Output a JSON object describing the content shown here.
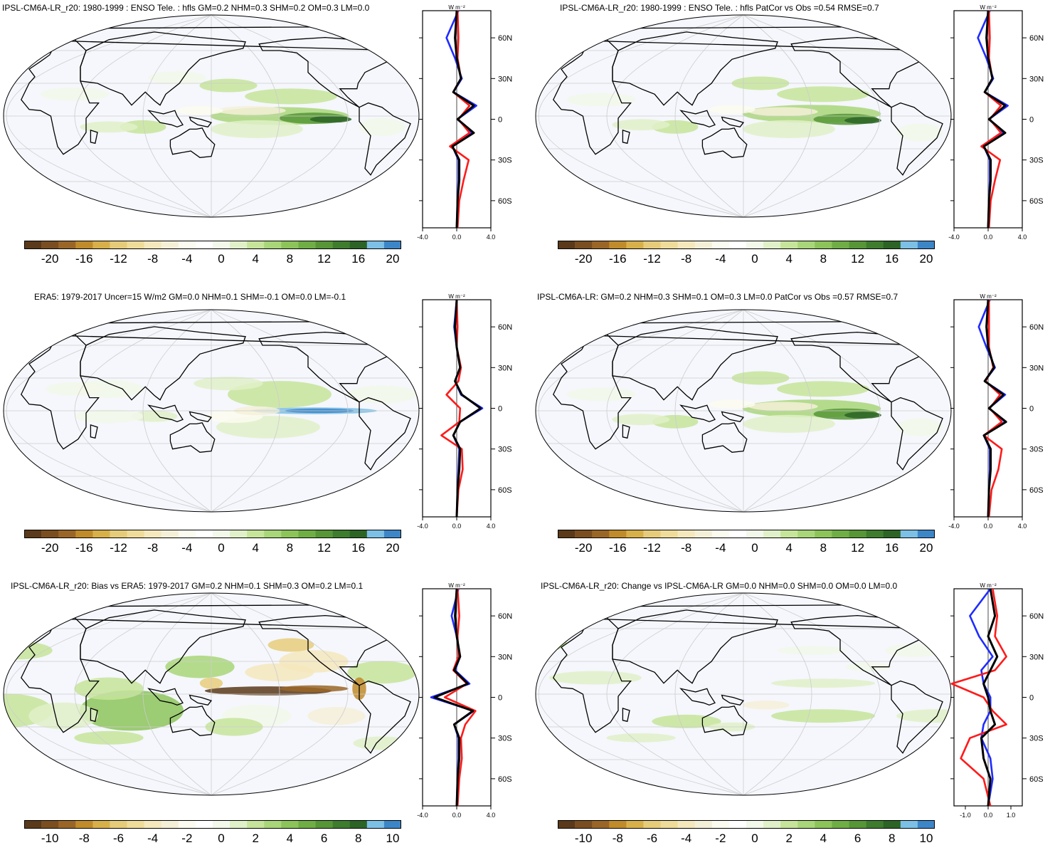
{
  "colors": {
    "ocean": "#f5f7fc",
    "land_outline": "#000000",
    "grid": "#cccccc",
    "series_blue": "#1f2bff",
    "series_red": "#ff1a1a",
    "series_black": "#000000",
    "colorbar": [
      "#5a3a1a",
      "#7a4e20",
      "#9a6628",
      "#c08b2a",
      "#d8b04a",
      "#e6cc7a",
      "#efdc9a",
      "#f5e8bc",
      "#f4f0d8",
      "#fbfbf0",
      "#ffffff",
      "#f2f8ea",
      "#e0f0c8",
      "#c6e49a",
      "#a8d678",
      "#8cc45a",
      "#6fae44",
      "#569636",
      "#3e7c2e",
      "#2c6426",
      "#7cc0e6",
      "#3c86c8"
    ]
  },
  "profile_unit": "W m⁻²",
  "lat_ticks": [
    "60N",
    "30N",
    "0",
    "30S",
    "60S"
  ],
  "panels": [
    {
      "id": "p1",
      "title": "IPSL-CM6A-LR_r20: 1980-1999 : ENSO Tele. : hfls GM=0.2 NHM=0.3 SHM=0.2 OM=0.3 LM=0.0",
      "cb_labels": [
        "-20",
        "-16",
        "-12",
        "-8",
        "-4",
        "0",
        "4",
        "8",
        "12",
        "16",
        "20"
      ],
      "x_ticks": [
        "-4.0",
        "0.0",
        "4.0"
      ]
    },
    {
      "id": "p2",
      "title": "IPSL-CM6A-LR_r20: 1980-1999 : ENSO Tele. : hfls PatCor vs Obs =0.54 RMSE=0.7",
      "cb_labels": [
        "-20",
        "-16",
        "-12",
        "-8",
        "-4",
        "0",
        "4",
        "8",
        "12",
        "16",
        "20"
      ],
      "x_ticks": [
        "-4.0",
        "0.0",
        "4.0"
      ]
    },
    {
      "id": "p3",
      "title": "ERA5: 1979-2017 Uncer=15 W/m2 GM=0.0 NHM=0.1 SHM=-0.1 OM=0.0 LM=-0.1",
      "cb_labels": [
        "-20",
        "-16",
        "-12",
        "-8",
        "-4",
        "0",
        "4",
        "8",
        "12",
        "16",
        "20"
      ],
      "x_ticks": [
        "-4.0",
        "0.0",
        "4.0"
      ]
    },
    {
      "id": "p4",
      "title": "IPSL-CM6A-LR: GM=0.2 NHM=0.3 SHM=0.1 OM=0.3 LM=0.0 PatCor vs Obs =0.57 RMSE=0.7",
      "cb_labels": [
        "-20",
        "-16",
        "-12",
        "-8",
        "-4",
        "0",
        "4",
        "8",
        "12",
        "16",
        "20"
      ],
      "x_ticks": [
        "-4.0",
        "0.0",
        "4.0"
      ]
    },
    {
      "id": "p5",
      "title": "IPSL-CM6A-LR_r20: Bias vs ERA5: 1979-2017 GM=0.2 NHM=0.1 SHM=0.3 OM=0.2 LM=0.1",
      "cb_labels": [
        "-10",
        "-8",
        "-6",
        "-4",
        "-2",
        "0",
        "2",
        "4",
        "6",
        "8",
        "10"
      ],
      "x_ticks": [
        "-4.0",
        "0.0",
        "4.0"
      ]
    },
    {
      "id": "p6",
      "title": "IPSL-CM6A-LR_r20: Change vs IPSL-CM6A-LR GM=0.0 NHM=0.0 SHM=0.0 OM=0.0 LM=0.0",
      "cb_labels": [
        "-10",
        "-8",
        "-6",
        "-4",
        "-2",
        "0",
        "2",
        "4",
        "6",
        "8",
        "10"
      ],
      "x_ticks": [
        "-1.0",
        "0.0",
        "1.0"
      ]
    }
  ],
  "chart_data": [
    {
      "type": "line",
      "panel": "p1",
      "xlim": [
        -4,
        4
      ],
      "ylim": [
        -80,
        80
      ],
      "lat": [
        -80,
        -60,
        -45,
        -30,
        -20,
        -10,
        0,
        10,
        20,
        30,
        45,
        60,
        80
      ],
      "series": [
        {
          "color": "blue",
          "values": [
            0,
            0.1,
            0.2,
            0.2,
            -0.5,
            1.8,
            0.1,
            2.3,
            -0.4,
            0.6,
            -0.2,
            -1.2,
            0.2
          ]
        },
        {
          "color": "red",
          "values": [
            0.1,
            0.3,
            0.8,
            1.4,
            -0.8,
            1.5,
            0.2,
            1.5,
            -0.4,
            0.5,
            0.1,
            0.2,
            0.1
          ]
        },
        {
          "color": "black",
          "values": [
            0,
            0.1,
            0.3,
            0.3,
            -0.5,
            2.0,
            0.1,
            2.0,
            -0.4,
            0.5,
            0,
            -0.2,
            0
          ]
        }
      ]
    },
    {
      "type": "line",
      "panel": "p2",
      "xlim": [
        -4,
        4
      ],
      "ylim": [
        -80,
        80
      ],
      "lat": [
        -80,
        -60,
        -45,
        -30,
        -20,
        -10,
        0,
        10,
        20,
        30,
        45,
        60,
        80
      ],
      "series": [
        {
          "color": "blue",
          "values": [
            0,
            0.1,
            0.2,
            0.2,
            -0.5,
            1.8,
            0.1,
            2.3,
            -0.4,
            0.6,
            -0.2,
            -1.2,
            0.2
          ]
        },
        {
          "color": "red",
          "values": [
            0.1,
            0.3,
            0.8,
            1.4,
            -0.8,
            1.5,
            0.2,
            1.5,
            -0.4,
            0.5,
            0.1,
            0.2,
            0.1
          ]
        },
        {
          "color": "black",
          "values": [
            0,
            0.1,
            0.3,
            0.3,
            -0.5,
            2.0,
            0.1,
            2.0,
            -0.4,
            0.5,
            0,
            -0.2,
            0
          ]
        }
      ]
    },
    {
      "type": "line",
      "panel": "p3",
      "xlim": [
        -4,
        4
      ],
      "ylim": [
        -80,
        80
      ],
      "lat": [
        -80,
        -60,
        -45,
        -30,
        -20,
        -10,
        0,
        10,
        20,
        30,
        45,
        60,
        80
      ],
      "series": [
        {
          "color": "blue",
          "values": [
            0,
            0.1,
            0.2,
            0.3,
            -0.4,
            0.4,
            3.0,
            0.5,
            -0.2,
            0.4,
            0,
            -0.3,
            0
          ]
        },
        {
          "color": "red",
          "values": [
            0,
            0.2,
            0.7,
            0.6,
            -1.8,
            0.3,
            0.4,
            -1.2,
            0.2,
            0.5,
            0,
            0.1,
            0
          ]
        },
        {
          "color": "black",
          "values": [
            0,
            0.1,
            0.3,
            0.4,
            -0.4,
            0.4,
            2.8,
            0.6,
            -0.2,
            0.4,
            0,
            -0.2,
            0
          ]
        }
      ]
    },
    {
      "type": "line",
      "panel": "p4",
      "xlim": [
        -4,
        4
      ],
      "ylim": [
        -80,
        80
      ],
      "lat": [
        -80,
        -60,
        -45,
        -30,
        -20,
        -10,
        0,
        10,
        20,
        30,
        45,
        60,
        80
      ],
      "series": [
        {
          "color": "blue",
          "values": [
            0,
            0.1,
            0.2,
            0.2,
            -0.5,
            2.0,
            0.1,
            2.0,
            -0.4,
            0.8,
            -0.2,
            -1.1,
            0.2
          ]
        },
        {
          "color": "red",
          "values": [
            0.1,
            0.4,
            1.2,
            1.6,
            -0.5,
            1.6,
            0.2,
            1.4,
            -0.3,
            0.6,
            0.1,
            0.1,
            0.1
          ]
        },
        {
          "color": "black",
          "values": [
            0,
            0.1,
            0.3,
            0.3,
            -0.5,
            2.1,
            0.1,
            1.8,
            -0.4,
            0.7,
            0,
            -0.2,
            0
          ]
        }
      ]
    },
    {
      "type": "line",
      "panel": "p5",
      "xlim": [
        -4,
        4
      ],
      "ylim": [
        -80,
        80
      ],
      "lat": [
        -80,
        -60,
        -45,
        -30,
        -20,
        -10,
        0,
        10,
        20,
        30,
        45,
        60,
        80
      ],
      "series": [
        {
          "color": "blue",
          "values": [
            0,
            0.1,
            0.2,
            0.2,
            -0.3,
            2.0,
            -3.0,
            1.5,
            -0.2,
            0.4,
            0,
            -0.6,
            0.2
          ]
        },
        {
          "color": "red",
          "values": [
            0.1,
            0.3,
            0.6,
            0.5,
            1.0,
            2.2,
            -1.4,
            1.2,
            -0.4,
            0.2,
            0.1,
            0.3,
            0.1
          ]
        },
        {
          "color": "black",
          "values": [
            0,
            0.1,
            0.3,
            0.3,
            -0.3,
            1.9,
            -2.6,
            1.3,
            -0.3,
            0.4,
            0,
            -0.2,
            0
          ]
        }
      ]
    },
    {
      "type": "line",
      "panel": "p6",
      "xlim": [
        -1.5,
        1.5
      ],
      "ylim": [
        -80,
        80
      ],
      "lat": [
        -80,
        -60,
        -45,
        -30,
        -20,
        -10,
        0,
        10,
        20,
        30,
        45,
        60,
        80
      ],
      "series": [
        {
          "color": "blue",
          "values": [
            0,
            0.2,
            0.1,
            -0.3,
            -0.2,
            0.1,
            0.1,
            -0.2,
            -0.3,
            0.2,
            -0.4,
            -0.8,
            0.1
          ]
        },
        {
          "color": "red",
          "values": [
            0.1,
            -0.2,
            -1.2,
            -0.8,
            0.8,
            0.2,
            -0.2,
            -1.6,
            0.3,
            0.8,
            0.3,
            0.4,
            0.2
          ]
        },
        {
          "color": "black",
          "values": [
            0,
            0.1,
            -0.2,
            -0.3,
            0.3,
            0.1,
            0,
            -0.2,
            0.1,
            0.4,
            0,
            0.3,
            0.1
          ]
        }
      ]
    }
  ]
}
